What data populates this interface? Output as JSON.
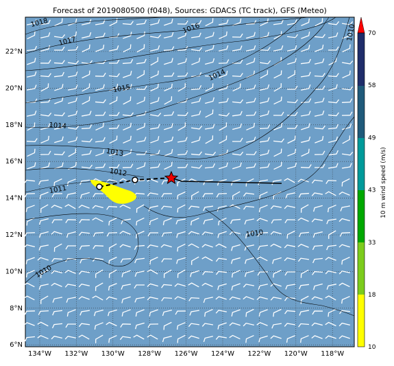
{
  "title": "Forecast of 2019080500 (f048), Sources: GDACS (TC track), GFS (Meteo)",
  "map": {
    "lon_labels": [
      "134°W",
      "132°W",
      "130°W",
      "128°W",
      "126°W",
      "124°W",
      "122°W",
      "120°W",
      "118°W"
    ],
    "lat_labels": [
      "22°N",
      "20°N",
      "18°N",
      "16°N",
      "14°N",
      "12°N",
      "10°N",
      "8°N",
      "6°N"
    ],
    "isobar_labels": [
      "1018",
      "1017",
      "1016",
      "1015",
      "1014",
      "1014",
      "1013",
      "1012",
      "1011",
      "1010",
      "1010",
      "1010"
    ]
  },
  "colorbar": {
    "label": "10 m wind speed (m/s)",
    "ticks": [
      "70",
      "58",
      "49",
      "43",
      "33",
      "18",
      "10"
    ]
  }
}
